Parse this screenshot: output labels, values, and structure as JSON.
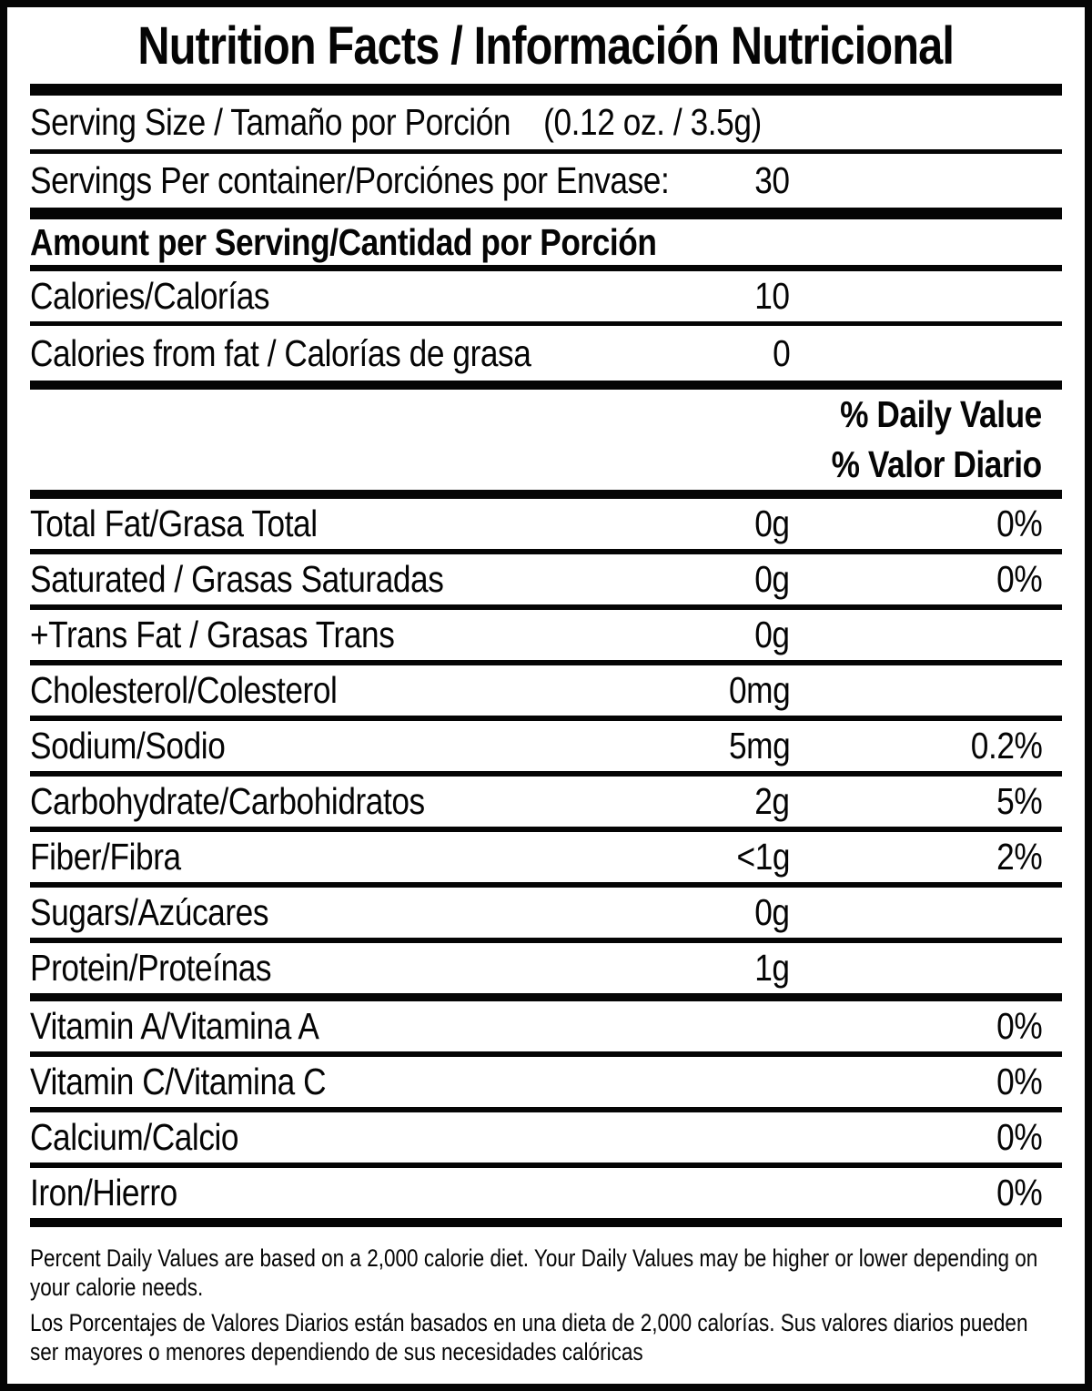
{
  "title": "Nutrition Facts / Información Nutricional",
  "serving": {
    "size_label": "Serving Size / Tamaño por Porción",
    "size_value": "(0.12 oz. / 3.5g)",
    "per_container_label": "Servings Per container/Porciónes por Envase:",
    "per_container_value": "30"
  },
  "amount_heading": "Amount per Serving/Cantidad por Porción",
  "calories": {
    "label": "Calories/Calorías",
    "value": "10"
  },
  "calories_from_fat": {
    "label": "Calories from fat / Calorías de grasa",
    "value": "0"
  },
  "daily_value_header": {
    "line1": "% Daily Value",
    "line2": "% Valor Diario"
  },
  "nutrients": [
    {
      "label": "Total Fat/Grasa Total",
      "amount": "0g",
      "dv": "0%"
    },
    {
      "label": "Saturated / Grasas Saturadas",
      "amount": "0g",
      "dv": "0%"
    },
    {
      "label": "+Trans Fat / Grasas Trans",
      "amount": "0g",
      "dv": ""
    },
    {
      "label": "Cholesterol/Colesterol",
      "amount": "0mg",
      "dv": ""
    },
    {
      "label": "Sodium/Sodio",
      "amount": "5mg",
      "dv": "0.2%"
    },
    {
      "label": "Carbohydrate/Carbohidratos",
      "amount": "2g",
      "dv": "5%"
    },
    {
      "label": "Fiber/Fibra",
      "amount": "<1g",
      "dv": "2%"
    },
    {
      "label": "Sugars/Azúcares",
      "amount": "0g",
      "dv": ""
    },
    {
      "label": "Protein/Proteínas",
      "amount": "1g",
      "dv": ""
    },
    {
      "label": "Vitamin A/Vitamina A",
      "amount": "",
      "dv": "0%"
    },
    {
      "label": "Vitamin C/Vitamina C",
      "amount": "",
      "dv": "0%"
    },
    {
      "label": "Calcium/Calcio",
      "amount": "",
      "dv": "0%"
    },
    {
      "label": "Iron/Hierro",
      "amount": "",
      "dv": "0%"
    }
  ],
  "footnotes": {
    "english": "Percent Daily Values are based on a 2,000 calorie diet. Your Daily Values may be higher or lower depending on your calorie needs.",
    "spanish": "Los Porcentajes de Valores Diarios están basados en una dieta de 2,000 calorías. Sus valores diarios pueden ser mayores o menores dependiendo de sus necesidades calóricas"
  },
  "colors": {
    "ink": "#050505",
    "paper": "#ffffff"
  }
}
